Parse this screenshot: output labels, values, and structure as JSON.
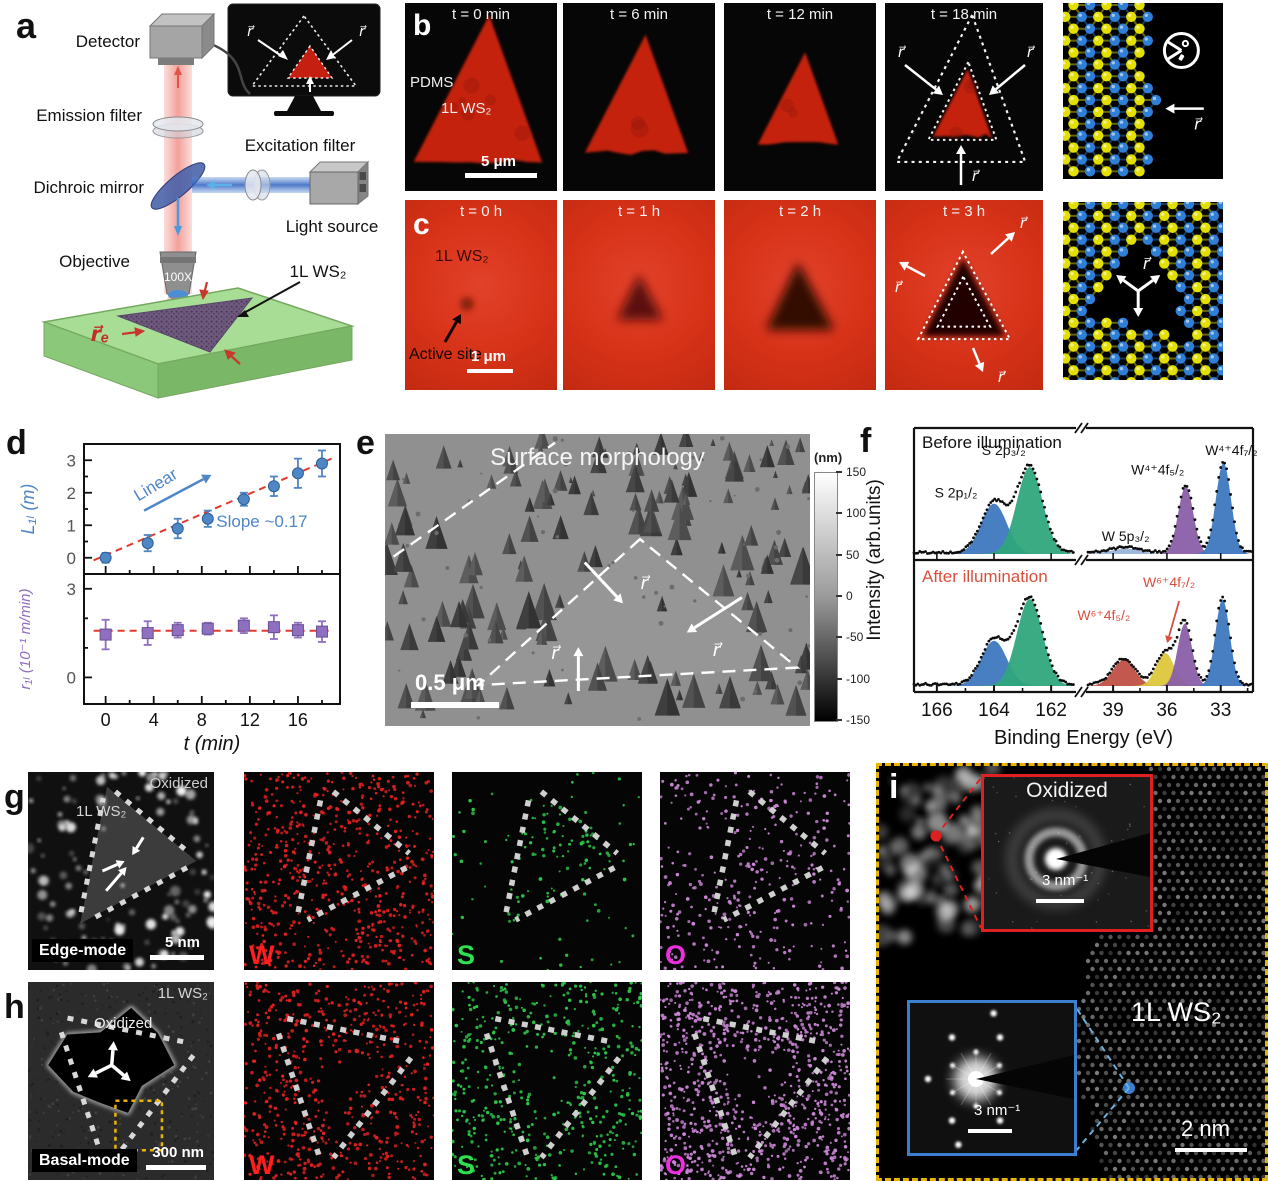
{
  "panel_a": {
    "label": "a",
    "detector": "Detector",
    "emission_filter": "Emission filter",
    "dichroic_mirror": "Dichroic mirror",
    "objective": "Objective",
    "excitation_filter": "Excitation filter",
    "light_source": "Light source",
    "magnification": "100X",
    "sample": "1L WS₂",
    "re_vector": "r⃗ₑ",
    "r_vector": "r⃗"
  },
  "panel_b": {
    "label": "b",
    "frames": [
      {
        "time": "t = 0 min",
        "material": "PDMS",
        "sample": "1L WS₂",
        "scalebar": "5 μm"
      },
      {
        "time": "t = 6 min"
      },
      {
        "time": "t = 12 min"
      },
      {
        "time": "t = 18 min",
        "r_vector": "r⃗"
      }
    ],
    "lattice": {
      "r_vector": "r⃗"
    }
  },
  "panel_c": {
    "label": "c",
    "frames": [
      {
        "time": "t = 0 h",
        "sample": "1L WS₂",
        "annotation": "Active site",
        "scalebar": "1 μm"
      },
      {
        "time": "t = 1 h"
      },
      {
        "time": "t = 2 h"
      },
      {
        "time": "t = 3 h",
        "r_vector": "r⃗"
      }
    ],
    "lattice": {
      "r_vector": "r⃗"
    }
  },
  "panel_d": {
    "label": "d"
  },
  "panel_e": {
    "label": "e",
    "title": "Surface morphology",
    "scalebar": "0.5 μm",
    "r_vector": "r⃗",
    "colorbar": {
      "unit": "(nm)",
      "ticks": [
        "150",
        "100",
        "50",
        "0",
        "-50",
        "-100",
        "-150"
      ]
    }
  },
  "panel_f": {
    "label": "f"
  },
  "chart_data": [
    {
      "id": "panel_d_length",
      "type": "scatter",
      "x": [
        0,
        3.5,
        6,
        8.5,
        11.5,
        14,
        16,
        18
      ],
      "y": [
        0.0,
        0.45,
        0.9,
        1.2,
        1.8,
        2.2,
        2.6,
        2.9
      ],
      "yerr": [
        0.15,
        0.25,
        0.3,
        0.25,
        0.2,
        0.3,
        0.45,
        0.4
      ],
      "fit_line": {
        "style": "dashed",
        "color": "#e03b2f",
        "x": [
          -1.0,
          18.8
        ],
        "y": [
          -0.08,
          3.05
        ]
      },
      "annotations": [
        "Linear",
        "Slope ~0.17"
      ],
      "ylabel": "L₁ₗ (m)",
      "yticks": [
        0,
        1,
        2,
        3
      ],
      "ylim": [
        -0.5,
        3.5
      ],
      "xlim": [
        -1.8,
        19.5
      ],
      "marker": {
        "shape": "circle",
        "color": "#4e86c6"
      }
    },
    {
      "id": "panel_d_rate",
      "type": "scatter",
      "x": [
        0,
        3.5,
        6,
        8.5,
        11.5,
        14,
        16,
        18
      ],
      "y": [
        1.45,
        1.5,
        1.6,
        1.65,
        1.75,
        1.7,
        1.6,
        1.55
      ],
      "yerr": [
        0.5,
        0.4,
        0.25,
        0.2,
        0.25,
        0.4,
        0.25,
        0.35
      ],
      "fit_line": {
        "style": "dashed",
        "color": "#e03b2f",
        "x": [
          -1.0,
          18.8
        ],
        "y": [
          1.58,
          1.58
        ]
      },
      "ylabel": "r₁ₗ (10⁻¹ m/min)",
      "yticks": [
        0,
        3
      ],
      "ylim": [
        -0.9,
        3.5
      ],
      "xlim": [
        -1.8,
        19.5
      ],
      "xlabel": "t (min)",
      "xticks": [
        0,
        4,
        8,
        12,
        16
      ],
      "marker": {
        "shape": "square",
        "color": "#8f6fc0"
      }
    },
    {
      "id": "panel_f_xps",
      "type": "spectra",
      "xlabel": "Binding Energy (eV)",
      "ylabel": "Intensity (arb.units)",
      "x_break": true,
      "regions": [
        {
          "xlim": [
            166.8,
            161.2
          ],
          "xticks": [
            166,
            164,
            162
          ]
        },
        {
          "xlim": [
            40.4,
            31.2
          ],
          "xticks": [
            39,
            36,
            33
          ]
        }
      ],
      "spectra": [
        {
          "label": "Before illumination",
          "label_color": "#111111",
          "peaks": [
            {
              "name": "S 2p₁/₂",
              "region": 0,
              "center": 164.0,
              "sigma": 0.45,
              "amp": 0.58,
              "color": "#3e78c0"
            },
            {
              "name": "S 2p₃/₂",
              "region": 0,
              "center": 162.75,
              "sigma": 0.45,
              "amp": 1.0,
              "color": "#2fa67c"
            },
            {
              "name": "W 5p₃/₂",
              "region": 1,
              "center": 38.3,
              "sigma": 0.85,
              "amp": 0.06,
              "color": "#9ab4d8"
            },
            {
              "name": "W⁴⁺4f₅/₂",
              "region": 1,
              "center": 34.95,
              "sigma": 0.42,
              "amp": 0.78,
              "color": "#8a5ea8"
            },
            {
              "name": "W⁴⁺4f₇/₂",
              "region": 1,
              "center": 32.85,
              "sigma": 0.42,
              "amp": 1.05,
              "color": "#3e78c0"
            }
          ]
        },
        {
          "label": "After illumination",
          "label_color": "#d94f3d",
          "peaks": [
            {
              "name": "S 2p₁/₂",
              "region": 0,
              "center": 164.0,
              "sigma": 0.45,
              "amp": 0.52,
              "color": "#3e78c0"
            },
            {
              "name": "S 2p₃/₂",
              "region": 0,
              "center": 162.75,
              "sigma": 0.45,
              "amp": 1.0,
              "color": "#2fa67c"
            },
            {
              "name": "W⁶⁺4f₅/₂",
              "region": 1,
              "center": 38.4,
              "sigma": 0.62,
              "amp": 0.3,
              "color": "#c05045",
              "label_color": "#d94f3d"
            },
            {
              "name": "W⁶⁺4f₇/₂",
              "region": 1,
              "center": 36.1,
              "sigma": 0.5,
              "amp": 0.38,
              "color": "#ddc73c",
              "label_color": "#d94f3d"
            },
            {
              "name": "W⁴⁺4f₅/₂",
              "region": 1,
              "center": 35.0,
              "sigma": 0.4,
              "amp": 0.72,
              "color": "#8a5ea8"
            },
            {
              "name": "W⁴⁺4f₇/₂",
              "region": 1,
              "center": 32.9,
              "sigma": 0.4,
              "amp": 1.0,
              "color": "#3e78c0"
            }
          ]
        }
      ]
    }
  ],
  "panel_g": {
    "label": "g",
    "mode": "Edge-mode",
    "scalebar": "5 nm",
    "sample": "1L WS₂",
    "oxidized": "Oxidized",
    "maps": [
      {
        "element": "W",
        "color": "#ff1f1f",
        "dot_color": "#e62020"
      },
      {
        "element": "S",
        "color": "#2ee04e",
        "dot_color": "#2dc94a"
      },
      {
        "element": "O",
        "color": "#ee2fe0",
        "dot_color": "#cd86d8"
      }
    ]
  },
  "panel_h": {
    "label": "h",
    "mode": "Basal-mode",
    "scalebar": "300 nm",
    "sample": "1L WS₂",
    "oxidized": "Oxidized",
    "maps": [
      {
        "element": "W",
        "color": "#ff1f1f",
        "dot_color": "#e62020"
      },
      {
        "element": "S",
        "color": "#2ee04e",
        "dot_color": "#2dc94a"
      },
      {
        "element": "O",
        "color": "#ee2fe0",
        "dot_color": "#cd86d8"
      }
    ]
  },
  "panel_i": {
    "label": "i",
    "sample": "1L WS₂",
    "scalebar": "2 nm",
    "border_color": "#e9b400",
    "insets": [
      {
        "label": "Oxidized",
        "scalebar": "3 nm⁻¹",
        "border_color": "#e02020"
      },
      {
        "scalebar": "3 nm⁻¹",
        "border_color": "#3a7fd0"
      }
    ]
  }
}
